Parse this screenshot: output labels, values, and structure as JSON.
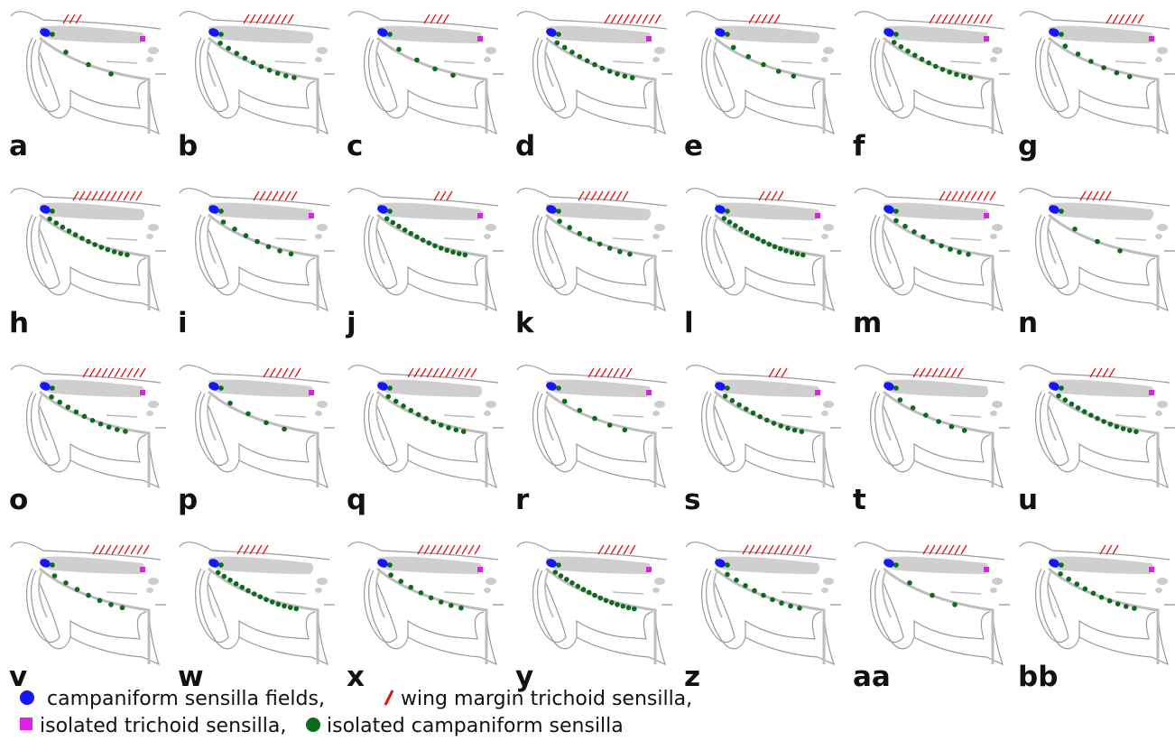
{
  "panels": [
    "a",
    "b",
    "c",
    "d",
    "e",
    "f",
    "g",
    "h",
    "i",
    "j",
    "k",
    "l",
    "m",
    "n",
    "o",
    "p",
    "q",
    "r",
    "s",
    "t",
    "u",
    "v",
    "w",
    "x",
    "y",
    "z",
    "aa",
    "bb"
  ],
  "legend": [
    "campaniform sensilla fields,",
    "wing margin trichoid sensilla,",
    "isolated trichoid sensilla,",
    "isolated campaniform sensilla"
  ]
}
